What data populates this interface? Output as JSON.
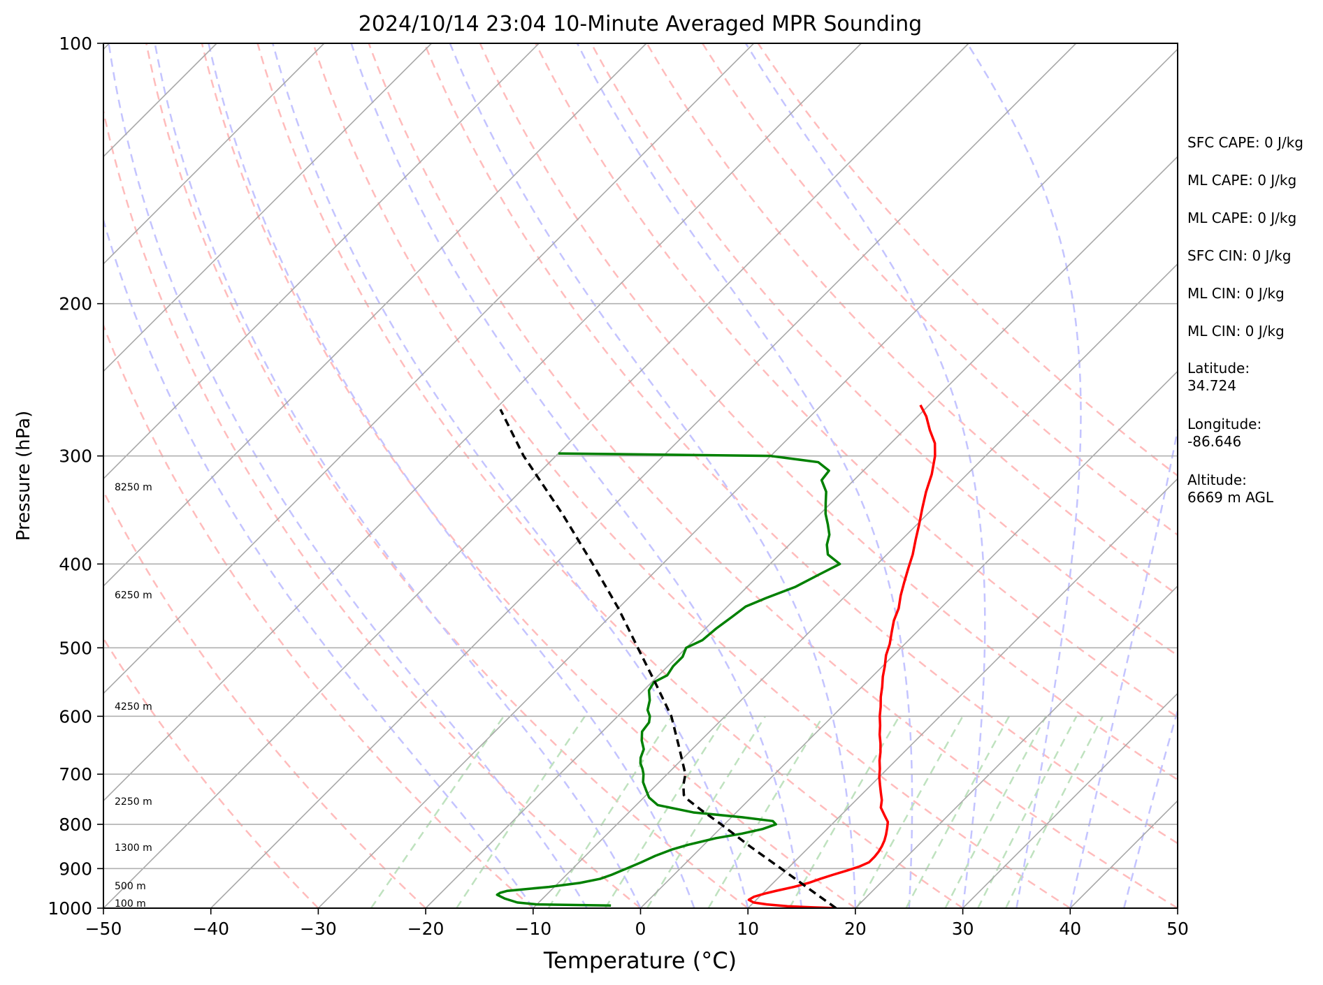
{
  "chart_data": {
    "type": "line",
    "subtype": "skew-t log-p sounding",
    "title": "2024/10/14 23:04 10-Minute Averaged MPR Sounding",
    "xlabel": "Temperature (°C)",
    "ylabel": "Pressure (hPa)",
    "xlim": [
      -50,
      50
    ],
    "ylim": [
      1000,
      100
    ],
    "y_scale": "log",
    "skew": 1.0,
    "x_ticks": [
      -50,
      -40,
      -30,
      -20,
      -10,
      0,
      10,
      20,
      30,
      40,
      50
    ],
    "x_tick_labels": [
      "−50",
      "−40",
      "−30",
      "−20",
      "−10",
      "0",
      "10",
      "20",
      "30",
      "40",
      "50"
    ],
    "y_ticks": [
      1000,
      900,
      800,
      700,
      600,
      500,
      400,
      300,
      200,
      100
    ],
    "y_tick_labels": [
      "1000",
      "900",
      "800",
      "700",
      "600",
      "500",
      "400",
      "300",
      "200",
      "100"
    ],
    "horizontal_grid": true,
    "colors": {
      "temperature": "#ff0000",
      "dewpoint": "#008000",
      "parcel": "#000000",
      "isotherms": "#a8a8a8",
      "dry_adiabats": "#ffbcbc",
      "moist_adiabats": "#c4c4ff",
      "mixing_ratio": "#bfe2bf"
    },
    "series": [
      {
        "key": "temperature",
        "style": "solid",
        "points": [
          [
            1000,
            18.2
          ],
          [
            998,
            16.0
          ],
          [
            995,
            13.5
          ],
          [
            990,
            11.4
          ],
          [
            985,
            10.0
          ],
          [
            978,
            9.3
          ],
          [
            970,
            9.5
          ],
          [
            962,
            10.2
          ],
          [
            955,
            11.0
          ],
          [
            945,
            12.3
          ],
          [
            935,
            13.3
          ],
          [
            925,
            14.0
          ],
          [
            915,
            14.8
          ],
          [
            905,
            15.7
          ],
          [
            895,
            16.5
          ],
          [
            885,
            17.0
          ],
          [
            872,
            17.0
          ],
          [
            860,
            16.9
          ],
          [
            848,
            16.7
          ],
          [
            835,
            16.4
          ],
          [
            822,
            16.0
          ],
          [
            808,
            15.5
          ],
          [
            795,
            15.0
          ],
          [
            780,
            14.0
          ],
          [
            765,
            13.0
          ],
          [
            750,
            12.4
          ],
          [
            735,
            11.6
          ],
          [
            720,
            10.8
          ],
          [
            705,
            10.0
          ],
          [
            690,
            9.3
          ],
          [
            675,
            8.5
          ],
          [
            660,
            7.8
          ],
          [
            645,
            7.0
          ],
          [
            630,
            6.1
          ],
          [
            615,
            5.3
          ],
          [
            600,
            4.4
          ],
          [
            585,
            3.6
          ],
          [
            570,
            2.7
          ],
          [
            555,
            1.9
          ],
          [
            540,
            1.0
          ],
          [
            525,
            0.2
          ],
          [
            510,
            -0.7
          ],
          [
            495,
            -1.4
          ],
          [
            480,
            -2.3
          ],
          [
            465,
            -3.2
          ],
          [
            450,
            -3.9
          ],
          [
            435,
            -4.9
          ],
          [
            420,
            -5.8
          ],
          [
            405,
            -6.7
          ],
          [
            390,
            -7.6
          ],
          [
            375,
            -8.7
          ],
          [
            360,
            -9.8
          ],
          [
            345,
            -11.0
          ],
          [
            330,
            -12.2
          ],
          [
            315,
            -13.3
          ],
          [
            300,
            -14.7
          ],
          [
            290,
            -15.9
          ],
          [
            280,
            -17.6
          ],
          [
            270,
            -19.2
          ],
          [
            262,
            -20.8
          ]
        ]
      },
      {
        "key": "dewpoint",
        "style": "solid",
        "points": [
          [
            993,
            -3.0
          ],
          [
            990,
            -10.0
          ],
          [
            985,
            -12.0
          ],
          [
            975,
            -13.5
          ],
          [
            965,
            -14.6
          ],
          [
            960,
            -14.5
          ],
          [
            955,
            -14.0
          ],
          [
            945,
            -10.5
          ],
          [
            935,
            -8.0
          ],
          [
            925,
            -6.5
          ],
          [
            915,
            -5.8
          ],
          [
            900,
            -5.0
          ],
          [
            885,
            -4.2
          ],
          [
            870,
            -3.5
          ],
          [
            855,
            -2.5
          ],
          [
            845,
            -1.5
          ],
          [
            830,
            0.5
          ],
          [
            820,
            2.5
          ],
          [
            810,
            4.0
          ],
          [
            800,
            4.8
          ],
          [
            793,
            4.2
          ],
          [
            785,
            1.0
          ],
          [
            775,
            -4.0
          ],
          [
            760,
            -8.0
          ],
          [
            745,
            -9.5
          ],
          [
            730,
            -10.5
          ],
          [
            715,
            -11.5
          ],
          [
            700,
            -12.2
          ],
          [
            690,
            -12.8
          ],
          [
            680,
            -13.5
          ],
          [
            670,
            -14.0
          ],
          [
            655,
            -14.5
          ],
          [
            640,
            -15.5
          ],
          [
            625,
            -16.3
          ],
          [
            610,
            -16.5
          ],
          [
            600,
            -17.0
          ],
          [
            590,
            -17.8
          ],
          [
            575,
            -18.5
          ],
          [
            560,
            -19.5
          ],
          [
            548,
            -19.8
          ],
          [
            538,
            -19.2
          ],
          [
            525,
            -19.5
          ],
          [
            512,
            -19.5
          ],
          [
            500,
            -20.0
          ],
          [
            490,
            -19.2
          ],
          [
            475,
            -19.0
          ],
          [
            460,
            -18.6
          ],
          [
            448,
            -18.3
          ],
          [
            438,
            -17.2
          ],
          [
            425,
            -15.5
          ],
          [
            412,
            -14.5
          ],
          [
            400,
            -13.5
          ],
          [
            390,
            -15.5
          ],
          [
            380,
            -16.5
          ],
          [
            370,
            -17.2
          ],
          [
            360,
            -18.3
          ],
          [
            350,
            -19.5
          ],
          [
            340,
            -20.5
          ],
          [
            330,
            -21.5
          ],
          [
            320,
            -23.0
          ],
          [
            312,
            -23.2
          ],
          [
            305,
            -25.0
          ],
          [
            300,
            -30.0
          ],
          [
            298,
            -50.0
          ]
        ]
      },
      {
        "key": "parcel",
        "style": "dashed",
        "points": [
          [
            1000,
            18.2
          ],
          [
            950,
            13.9
          ],
          [
            900,
            9.4
          ],
          [
            850,
            4.6
          ],
          [
            800,
            -0.3
          ],
          [
            770,
            -3.5
          ],
          [
            750,
            -5.6
          ],
          [
            740,
            -6.5
          ],
          [
            730,
            -7.0
          ],
          [
            720,
            -7.5
          ],
          [
            700,
            -8.3
          ],
          [
            650,
            -11.5
          ],
          [
            600,
            -15.0
          ],
          [
            550,
            -19.5
          ],
          [
            500,
            -24.5
          ],
          [
            450,
            -30.0
          ],
          [
            400,
            -36.5
          ],
          [
            350,
            -44.0
          ],
          [
            300,
            -53.0
          ],
          [
            265,
            -59.5
          ]
        ]
      }
    ],
    "height_labels": [
      {
        "text": "100 m",
        "p": 1000
      },
      {
        "text": "500 m",
        "p": 955
      },
      {
        "text": "1300 m",
        "p": 862
      },
      {
        "text": "2250 m",
        "p": 762
      },
      {
        "text": "4250 m",
        "p": 592
      },
      {
        "text": "6250 m",
        "p": 440
      },
      {
        "text": "8250 m",
        "p": 330
      }
    ],
    "annotations": [
      "SFC CAPE: 0 J/kg",
      "ML CAPE: 0 J/kg",
      "ML CAPE: 0 J/kg",
      "SFC CIN: 0 J/kg",
      "ML CIN: 0 J/kg",
      "ML CIN: 0 J/kg",
      "Latitude:",
      "34.724",
      "Longitude:",
      "-86.646",
      "Altitude:",
      "6669 m AGL"
    ],
    "background_lines": {
      "isotherms_c": [
        -150,
        -140,
        -130,
        -120,
        -110,
        -100,
        -90,
        -80,
        -70,
        -60,
        -50,
        -40,
        -30,
        -20,
        -10,
        0,
        10,
        20,
        30,
        40,
        50
      ],
      "dry_adiabats_c": [
        -30,
        -20,
        -10,
        0,
        10,
        20,
        30,
        40,
        50,
        60,
        70,
        80,
        90,
        100,
        110,
        120
      ],
      "moist_adiabats_c": [
        -10,
        -5,
        0,
        5,
        10,
        15,
        20,
        25,
        30,
        35,
        40,
        45
      ],
      "mixing_ratio_gkg": [
        0.5,
        1,
        2,
        3,
        4,
        6,
        10,
        15,
        20,
        25,
        30,
        35
      ],
      "mixing_ratio_top_p": 600
    }
  }
}
